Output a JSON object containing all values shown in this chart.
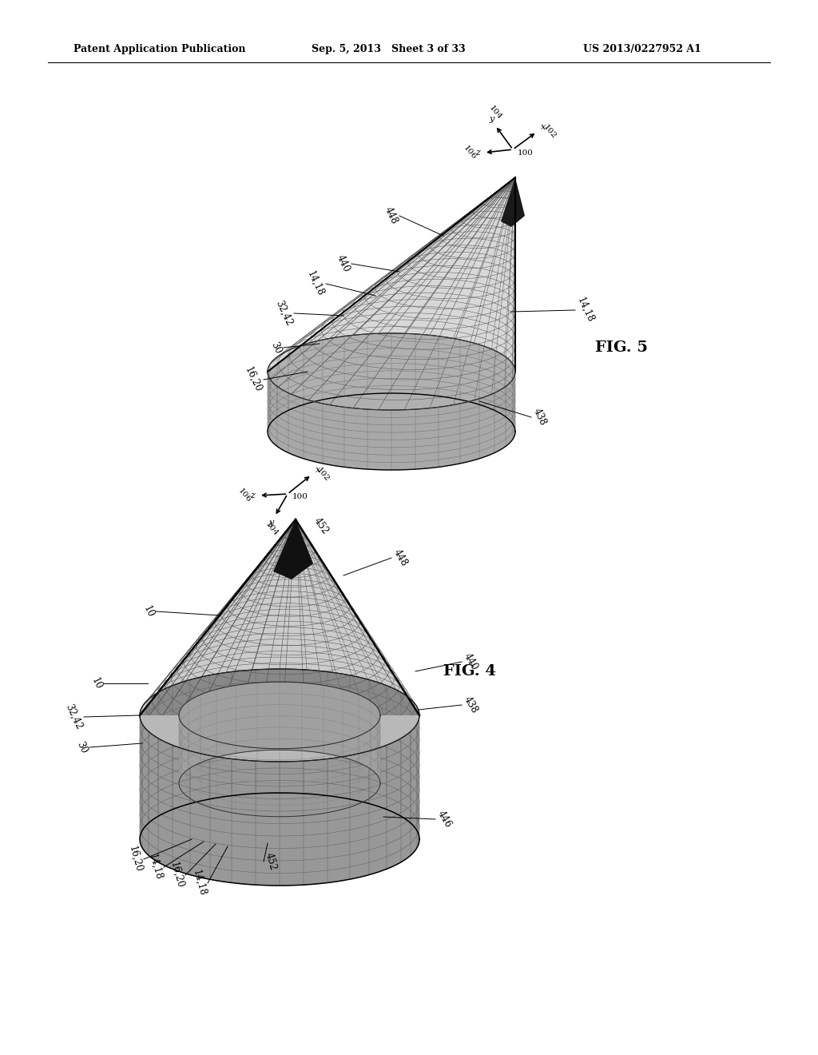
{
  "bg_color": "#ffffff",
  "header_left": "Patent Application Publication",
  "header_mid": "Sep. 5, 2013   Sheet 3 of 33",
  "header_right": "US 2013/0227952 A1",
  "fig5_label": "FIG. 5",
  "fig4_label": "FIG. 4"
}
